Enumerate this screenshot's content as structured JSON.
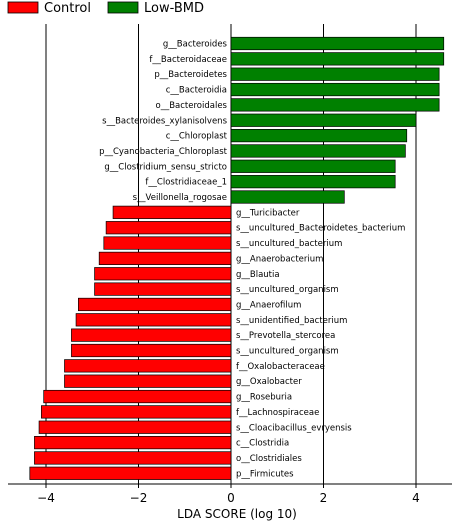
{
  "legend": [
    {
      "label": "Control",
      "color": "#ff0000"
    },
    {
      "label": "Low-BMD",
      "color": "#008000"
    }
  ],
  "chart_data": {
    "type": "bar",
    "orientation": "horizontal",
    "xlabel": "LDA SCORE (log 10)",
    "xlim": [
      -4.5,
      4.7
    ],
    "xticks": [
      -4,
      -2,
      0,
      2,
      4
    ],
    "xtick_labels": [
      "−4",
      "−2",
      "0",
      "2",
      "4"
    ],
    "vertical_gridlines_at": [
      -4,
      -2,
      0,
      2,
      4
    ],
    "bar_edge_color": "#000000",
    "series": [
      {
        "name": "Low-BMD",
        "color": "#008000",
        "categories": [
          "g__Bacteroides",
          "f__Bacteroidaceae",
          "p__Bacteroidetes",
          "c__Bacteroidia",
          "o__Bacteroidales",
          "s__Bacteroides_xylanisolvens",
          "c__Chloroplast",
          "p__Cyanobacteria_Chloroplast",
          "g__Clostridium_sensu_stricto",
          "f__Clostridiaceae_1",
          "s__Veillonella_rogosae"
        ],
        "values": [
          4.6,
          4.6,
          4.5,
          4.5,
          4.5,
          4.0,
          3.8,
          3.77,
          3.55,
          3.55,
          2.45
        ]
      },
      {
        "name": "Control",
        "color": "#ff0000",
        "categories": [
          "g__Turicibacter",
          "s__uncultured_Bacteroidetes_bacterium",
          "s__uncultured_bacterium",
          "g__Anaerobacterium",
          "g__Blautia",
          "s__uncultured_organism",
          "g__Anaerofilum",
          "s__unidentified_bacterium",
          "s__Prevotella_stercorea",
          "s__uncultured_organism",
          "f__Oxalobacteraceae",
          "g__Oxalobacter",
          "g__Roseburia",
          "f__Lachnospiraceae",
          "s__Cloacibacillus_evryensis",
          "c__Clostridia",
          "o__Clostridiales",
          "p__Firmicutes"
        ],
        "values": [
          -2.55,
          -2.7,
          -2.75,
          -2.85,
          -2.95,
          -2.95,
          -3.3,
          -3.35,
          -3.45,
          -3.45,
          -3.6,
          -3.6,
          -4.05,
          -4.1,
          -4.15,
          -4.25,
          -4.25,
          -4.35
        ]
      }
    ]
  }
}
